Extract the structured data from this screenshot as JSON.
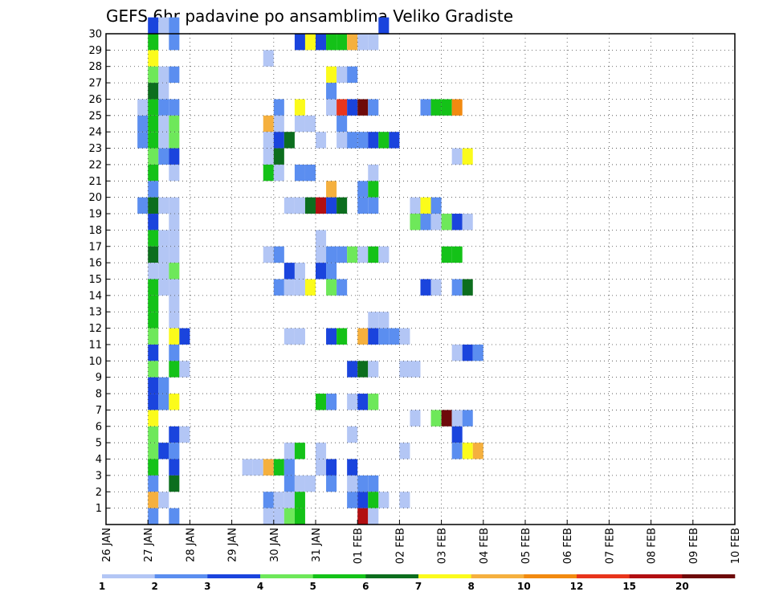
{
  "chart_data": {
    "type": "heatmap",
    "title": "GEFS 6hr padavine po ansamblima Veliko Gradiste",
    "xlabel": "",
    "ylabel": "",
    "x_ticks": [
      "26 JAN",
      "27 JAN",
      "28 JAN",
      "29 JAN",
      "30 JAN",
      "31 JAN",
      "01 FEB",
      "02 FEB",
      "03 FEB",
      "04 FEB",
      "05 FEB",
      "06 FEB",
      "07 FEB",
      "08 FEB",
      "09 FEB",
      "10 FEB"
    ],
    "y_ticks": [
      1,
      2,
      3,
      4,
      5,
      6,
      7,
      8,
      9,
      10,
      11,
      12,
      13,
      14,
      15,
      16,
      17,
      18,
      19,
      20,
      21,
      22,
      23,
      24,
      25,
      26,
      27,
      28,
      29,
      30
    ],
    "ylim": [
      0,
      30
    ],
    "grid": true,
    "colorbar": {
      "tick_labels": [
        "1",
        "2",
        "3",
        "4",
        "5",
        "6",
        "7",
        "8",
        "10",
        "12",
        "15",
        "20"
      ],
      "colors": [
        "#b3c6f5",
        "#5b8ef0",
        "#1a44dd",
        "#6ee85a",
        "#14c218",
        "#0c6e1e",
        "#fbfb1b",
        "#f5b03e",
        "#f28a10",
        "#e8351c",
        "#b20f12",
        "#6e0a0a"
      ]
    },
    "cells_note": "each cell: step index (0 = 26 JAN 00h, 4 steps/day), ensemble member row, colour class index",
    "cells": [
      [
        4,
        30,
        2
      ],
      [
        5,
        30,
        0
      ],
      [
        6,
        30,
        1
      ],
      [
        26,
        30,
        2
      ],
      [
        4,
        29,
        4
      ],
      [
        6,
        29,
        1
      ],
      [
        18,
        29,
        2
      ],
      [
        19,
        29,
        6
      ],
      [
        20,
        29,
        2
      ],
      [
        21,
        29,
        4
      ],
      [
        22,
        29,
        4
      ],
      [
        23,
        29,
        7
      ],
      [
        24,
        29,
        0
      ],
      [
        25,
        29,
        0
      ],
      [
        4,
        28,
        6
      ],
      [
        15,
        28,
        0
      ],
      [
        4,
        27,
        3
      ],
      [
        5,
        27,
        0
      ],
      [
        6,
        27,
        1
      ],
      [
        21,
        27,
        6
      ],
      [
        22,
        27,
        0
      ],
      [
        23,
        27,
        1
      ],
      [
        4,
        26,
        5
      ],
      [
        5,
        26,
        0
      ],
      [
        21,
        26,
        1
      ],
      [
        3,
        25,
        0
      ],
      [
        4,
        25,
        4
      ],
      [
        5,
        25,
        1
      ],
      [
        6,
        25,
        1
      ],
      [
        16,
        25,
        1
      ],
      [
        18,
        25,
        6
      ],
      [
        21,
        25,
        0
      ],
      [
        22,
        25,
        9
      ],
      [
        23,
        25,
        2
      ],
      [
        24,
        25,
        11
      ],
      [
        25,
        25,
        1
      ],
      [
        30,
        25,
        1
      ],
      [
        31,
        25,
        4
      ],
      [
        32,
        25,
        4
      ],
      [
        33,
        25,
        8
      ],
      [
        3,
        24,
        1
      ],
      [
        4,
        24,
        4
      ],
      [
        5,
        24,
        0
      ],
      [
        6,
        24,
        3
      ],
      [
        15,
        24,
        7
      ],
      [
        16,
        24,
        0
      ],
      [
        18,
        24,
        0
      ],
      [
        19,
        24,
        0
      ],
      [
        22,
        24,
        1
      ],
      [
        3,
        23,
        1
      ],
      [
        4,
        23,
        4
      ],
      [
        5,
        23,
        0
      ],
      [
        6,
        23,
        3
      ],
      [
        15,
        23,
        0
      ],
      [
        16,
        23,
        2
      ],
      [
        17,
        23,
        5
      ],
      [
        20,
        23,
        0
      ],
      [
        22,
        23,
        0
      ],
      [
        23,
        23,
        1
      ],
      [
        24,
        23,
        1
      ],
      [
        25,
        23,
        2
      ],
      [
        26,
        23,
        4
      ],
      [
        27,
        23,
        2
      ],
      [
        4,
        22,
        3
      ],
      [
        5,
        22,
        1
      ],
      [
        6,
        22,
        2
      ],
      [
        15,
        22,
        0
      ],
      [
        16,
        22,
        5
      ],
      [
        33,
        22,
        0
      ],
      [
        34,
        22,
        6
      ],
      [
        4,
        21,
        4
      ],
      [
        6,
        21,
        0
      ],
      [
        15,
        21,
        4
      ],
      [
        16,
        21,
        0
      ],
      [
        18,
        21,
        1
      ],
      [
        19,
        21,
        1
      ],
      [
        25,
        21,
        0
      ],
      [
        4,
        20,
        1
      ],
      [
        21,
        20,
        7
      ],
      [
        24,
        20,
        1
      ],
      [
        25,
        20,
        4
      ],
      [
        3,
        19,
        1
      ],
      [
        4,
        19,
        5
      ],
      [
        5,
        19,
        0
      ],
      [
        6,
        19,
        0
      ],
      [
        17,
        19,
        0
      ],
      [
        18,
        19,
        0
      ],
      [
        19,
        19,
        5
      ],
      [
        20,
        19,
        10
      ],
      [
        21,
        19,
        2
      ],
      [
        22,
        19,
        5
      ],
      [
        24,
        19,
        1
      ],
      [
        25,
        19,
        1
      ],
      [
        29,
        19,
        0
      ],
      [
        30,
        19,
        6
      ],
      [
        31,
        19,
        1
      ],
      [
        4,
        18,
        2
      ],
      [
        6,
        18,
        0
      ],
      [
        29,
        18,
        3
      ],
      [
        30,
        18,
        1
      ],
      [
        31,
        18,
        0
      ],
      [
        32,
        18,
        3
      ],
      [
        33,
        18,
        2
      ],
      [
        34,
        18,
        0
      ],
      [
        4,
        17,
        4
      ],
      [
        5,
        17,
        0
      ],
      [
        6,
        17,
        0
      ],
      [
        20,
        17,
        0
      ],
      [
        4,
        16,
        5
      ],
      [
        5,
        16,
        0
      ],
      [
        6,
        16,
        0
      ],
      [
        15,
        16,
        0
      ],
      [
        16,
        16,
        1
      ],
      [
        20,
        16,
        0
      ],
      [
        21,
        16,
        1
      ],
      [
        22,
        16,
        1
      ],
      [
        23,
        16,
        3
      ],
      [
        24,
        16,
        0
      ],
      [
        25,
        16,
        4
      ],
      [
        26,
        16,
        0
      ],
      [
        32,
        16,
        4
      ],
      [
        33,
        16,
        4
      ],
      [
        4,
        15,
        0
      ],
      [
        5,
        15,
        0
      ],
      [
        6,
        15,
        3
      ],
      [
        17,
        15,
        2
      ],
      [
        18,
        15,
        0
      ],
      [
        20,
        15,
        2
      ],
      [
        21,
        15,
        1
      ],
      [
        4,
        14,
        4
      ],
      [
        5,
        14,
        0
      ],
      [
        6,
        14,
        0
      ],
      [
        16,
        14,
        1
      ],
      [
        17,
        14,
        0
      ],
      [
        18,
        14,
        0
      ],
      [
        19,
        14,
        6
      ],
      [
        21,
        14,
        3
      ],
      [
        22,
        14,
        1
      ],
      [
        30,
        14,
        2
      ],
      [
        31,
        14,
        0
      ],
      [
        33,
        14,
        1
      ],
      [
        34,
        14,
        5
      ],
      [
        4,
        13,
        4
      ],
      [
        6,
        13,
        0
      ],
      [
        4,
        12,
        4
      ],
      [
        6,
        12,
        0
      ],
      [
        25,
        12,
        0
      ],
      [
        26,
        12,
        0
      ],
      [
        4,
        11,
        3
      ],
      [
        6,
        11,
        6
      ],
      [
        7,
        11,
        2
      ],
      [
        17,
        11,
        0
      ],
      [
        18,
        11,
        0
      ],
      [
        21,
        11,
        2
      ],
      [
        22,
        11,
        4
      ],
      [
        24,
        11,
        7
      ],
      [
        25,
        11,
        2
      ],
      [
        26,
        11,
        1
      ],
      [
        27,
        11,
        1
      ],
      [
        28,
        11,
        0
      ],
      [
        4,
        10,
        2
      ],
      [
        6,
        10,
        1
      ],
      [
        33,
        10,
        0
      ],
      [
        34,
        10,
        2
      ],
      [
        35,
        10,
        1
      ],
      [
        4,
        9,
        3
      ],
      [
        6,
        9,
        4
      ],
      [
        7,
        9,
        0
      ],
      [
        23,
        9,
        2
      ],
      [
        24,
        9,
        5
      ],
      [
        25,
        9,
        0
      ],
      [
        28,
        9,
        0
      ],
      [
        29,
        9,
        0
      ],
      [
        4,
        8,
        2
      ],
      [
        5,
        8,
        1
      ],
      [
        4,
        7,
        2
      ],
      [
        5,
        7,
        1
      ],
      [
        6,
        7,
        6
      ],
      [
        20,
        7,
        4
      ],
      [
        21,
        7,
        1
      ],
      [
        23,
        7,
        0
      ],
      [
        24,
        7,
        2
      ],
      [
        25,
        7,
        3
      ],
      [
        4,
        6,
        6
      ],
      [
        29,
        6,
        0
      ],
      [
        31,
        6,
        3
      ],
      [
        32,
        6,
        11
      ],
      [
        33,
        6,
        0
      ],
      [
        34,
        6,
        1
      ],
      [
        4,
        5,
        3
      ],
      [
        6,
        5,
        2
      ],
      [
        7,
        5,
        0
      ],
      [
        23,
        5,
        0
      ],
      [
        33,
        5,
        2
      ],
      [
        4,
        4,
        3
      ],
      [
        5,
        4,
        2
      ],
      [
        6,
        4,
        1
      ],
      [
        17,
        4,
        0
      ],
      [
        18,
        4,
        4
      ],
      [
        20,
        4,
        0
      ],
      [
        28,
        4,
        0
      ],
      [
        33,
        4,
        1
      ],
      [
        34,
        4,
        6
      ],
      [
        35,
        4,
        7
      ],
      [
        4,
        3,
        4
      ],
      [
        6,
        3,
        2
      ],
      [
        13,
        3,
        0
      ],
      [
        14,
        3,
        0
      ],
      [
        15,
        3,
        7
      ],
      [
        16,
        3,
        4
      ],
      [
        17,
        3,
        1
      ],
      [
        20,
        3,
        0
      ],
      [
        21,
        3,
        2
      ],
      [
        23,
        3,
        2
      ],
      [
        4,
        2,
        1
      ],
      [
        6,
        2,
        5
      ],
      [
        17,
        2,
        1
      ],
      [
        18,
        2,
        0
      ],
      [
        19,
        2,
        0
      ],
      [
        21,
        2,
        1
      ],
      [
        23,
        2,
        0
      ],
      [
        24,
        2,
        1
      ],
      [
        25,
        2,
        1
      ],
      [
        4,
        1,
        7
      ],
      [
        5,
        1,
        0
      ],
      [
        15,
        1,
        1
      ],
      [
        16,
        1,
        0
      ],
      [
        17,
        1,
        0
      ],
      [
        18,
        1,
        4
      ],
      [
        23,
        1,
        1
      ],
      [
        24,
        1,
        2
      ],
      [
        25,
        1,
        4
      ],
      [
        26,
        1,
        0
      ],
      [
        28,
        1,
        0
      ],
      [
        4,
        0,
        1
      ],
      [
        6,
        0,
        1
      ],
      [
        15,
        0,
        0
      ],
      [
        16,
        0,
        0
      ],
      [
        17,
        0,
        3
      ],
      [
        18,
        0,
        4
      ],
      [
        24,
        0,
        10
      ],
      [
        25,
        0,
        0
      ]
    ]
  }
}
